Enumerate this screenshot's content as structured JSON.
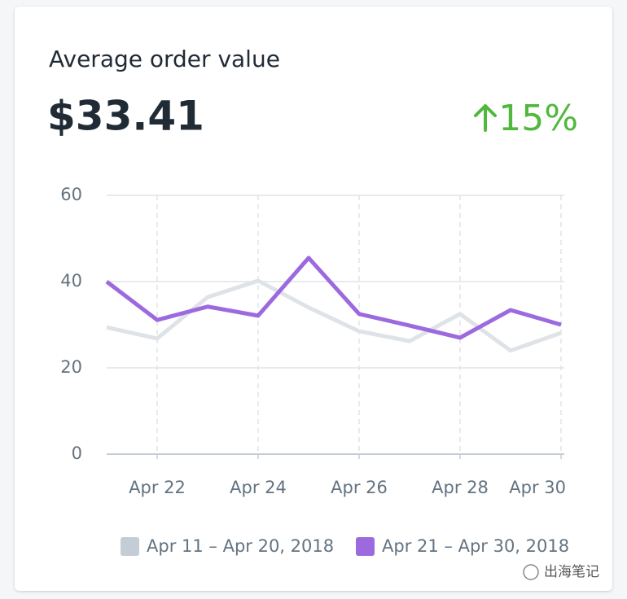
{
  "chart_data": {
    "type": "line",
    "title": "Average order value",
    "headline": "$33.41",
    "change": "15%",
    "change_color": "#50b83c",
    "categories": [
      null,
      "Apr 22",
      null,
      "Apr 24",
      null,
      "Apr 26",
      null,
      "Apr 28",
      null,
      "Apr 30"
    ],
    "series": [
      {
        "name": "Apr 11 – Apr 20, 2018",
        "color": "#dfe3e8",
        "legend_color": "#c4cdd5",
        "values": [
          29.4,
          26.8,
          36.4,
          40.2,
          34,
          28.5,
          26.2,
          32.5,
          24,
          28.1
        ]
      },
      {
        "name": "Apr 21 – Apr 30, 2018",
        "color": "#9c6ade",
        "legend_color": "#9c6ade",
        "values": [
          40,
          31.1,
          34.2,
          32.1,
          45.5,
          32.5,
          29.8,
          27,
          33.4,
          30
        ]
      }
    ],
    "ylim": [
      0,
      60
    ],
    "yticks": [
      0,
      20,
      40,
      60
    ],
    "grid": true
  },
  "watermark": "出海笔记"
}
